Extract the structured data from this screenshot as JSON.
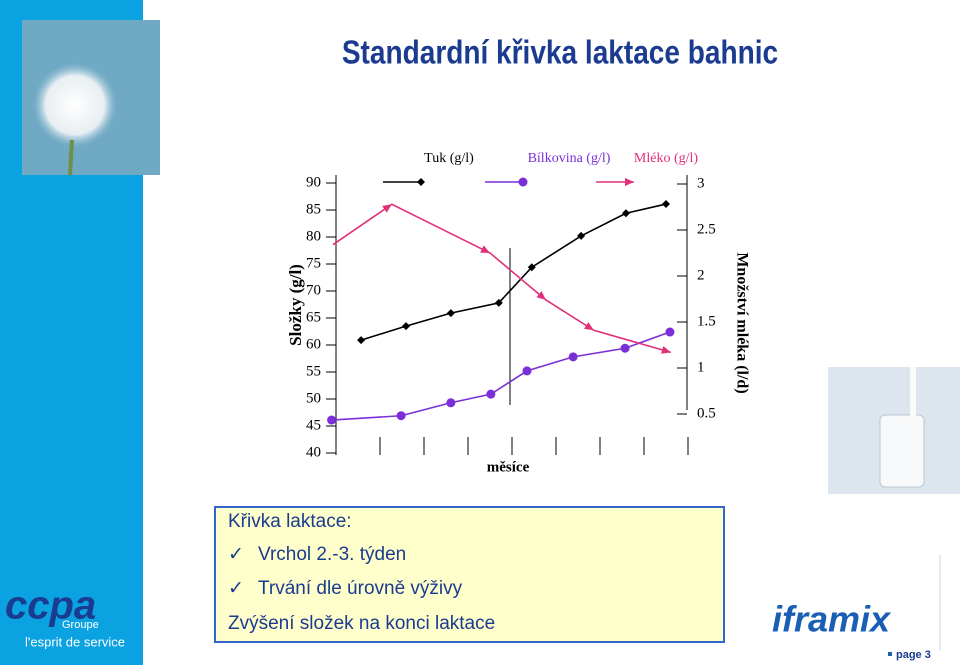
{
  "slide": {
    "title": "Standardní křivka laktace bahnic",
    "box": {
      "heading": "Křivka laktace:",
      "bullets": [
        "Vrchol 2.-3. týden",
        "Trvání dle úrovně výživy"
      ],
      "footer": "Zvýšení složek na konci laktace"
    },
    "logo_left": "ccpa",
    "logo_left_sub": "Groupe",
    "logo_left_tagline": "l'esprit de service",
    "logo_right": "iframix",
    "page": "page 3"
  },
  "chart_data": {
    "type": "line",
    "ylabel": "Složky (g/l)",
    "y2label": "Množství mléka (l/d)",
    "xlabel": "měsíce",
    "xlim": [
      0,
      8
    ],
    "xticks": [
      0,
      1,
      2,
      3,
      4,
      5,
      6,
      7,
      8
    ],
    "ylim": [
      40,
      90
    ],
    "yticks": [
      90,
      85,
      80,
      75,
      70,
      65,
      60,
      55,
      50,
      45,
      40
    ],
    "y2lim": [
      0.5,
      3
    ],
    "y2ticks": [
      3,
      2.5,
      2,
      1.5,
      1,
      0.5
    ],
    "series": [
      {
        "name": "Tuk (g/l)",
        "color": "#000000",
        "marker": "diamond",
        "x": [
          0.57,
          1.59,
          2.61,
          3.7,
          4.45,
          5.57,
          6.59,
          7.5
        ],
        "values": [
          60.9,
          63.5,
          65.9,
          67.8,
          74.4,
          80.2,
          84.4,
          86.1
        ]
      },
      {
        "name": "Bílkovina (g/l)",
        "color": "#7a2fd8",
        "marker": "circle",
        "x": [
          -0.1,
          1.48,
          2.61,
          3.52,
          4.34,
          5.39,
          6.57,
          7.59
        ],
        "values": [
          46.1,
          46.9,
          49.3,
          50.9,
          55.2,
          57.8,
          59.4,
          62.4
        ]
      },
      {
        "name": "Mléko (g/l)",
        "color": "#e0307a",
        "marker": "arrow",
        "axis": "y2",
        "x": [
          -0.07,
          1.27,
          3.5,
          4.77,
          5.86,
          7.61
        ],
        "values": [
          2.34,
          2.78,
          2.25,
          1.74,
          1.41,
          1.17
        ]
      }
    ]
  }
}
